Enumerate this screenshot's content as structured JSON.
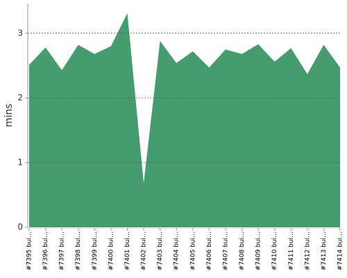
{
  "chart_data": {
    "type": "area",
    "y_label": "mins",
    "categories": [
      "#7395 bui…",
      "#7396 bui…",
      "#7397 bui…",
      "#7398 bui…",
      "#7399 bui…",
      "#7400 bui…",
      "#7401 bui…",
      "#7402 bui…",
      "#7403 bui…",
      "#7404 bui…",
      "#7405 bui…",
      "#7406 bui…",
      "#7407 bui…",
      "#7408 bui…",
      "#7409 bui…",
      "#7410 bui…",
      "#7411 bui…",
      "#7412 bui…",
      "#7413 bui…",
      "#7414 bui…"
    ],
    "values": [
      2.51,
      2.78,
      2.43,
      2.82,
      2.68,
      2.8,
      3.31,
      0.68,
      2.88,
      2.54,
      2.72,
      2.47,
      2.75,
      2.68,
      2.83,
      2.56,
      2.77,
      2.37,
      2.82,
      2.47
    ],
    "color": "#459c6e",
    "ylim": [
      0,
      3.46
    ],
    "yticks": [
      0,
      1,
      2,
      3
    ],
    "grid": true
  }
}
